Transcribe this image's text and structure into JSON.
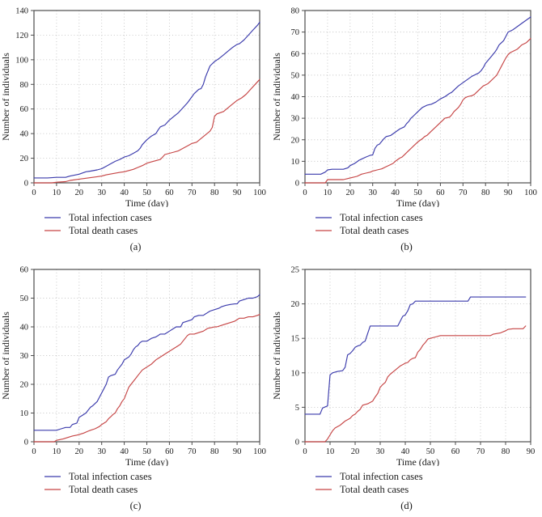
{
  "colors": {
    "background": "#ffffff",
    "frame": "#4d4d4d",
    "grid": "#c4c4c4",
    "text": "#1c1c1c"
  },
  "chart_data": [
    {
      "type": "line",
      "caption": "(a)",
      "xlabel": "Time (day)",
      "ylabel": "Number of individuals",
      "xlim": [
        0,
        100
      ],
      "ylim": [
        0,
        140
      ],
      "xticks": [
        0,
        10,
        20,
        30,
        40,
        50,
        60,
        70,
        80,
        90,
        100
      ],
      "yticks": [
        0,
        20,
        40,
        60,
        80,
        100,
        120,
        140
      ],
      "grid": "dotted",
      "legend_position": "below-left",
      "series": [
        {
          "name": "Total infection cases",
          "color": "#3b3bac",
          "x": [
            0,
            6,
            10,
            14,
            16,
            20,
            23,
            25,
            28,
            30,
            32,
            34,
            36,
            38,
            40,
            42,
            44,
            46,
            47,
            48,
            50,
            52,
            54,
            55,
            56,
            58,
            60,
            62,
            64,
            66,
            68,
            70,
            71,
            73,
            74,
            75,
            76,
            78,
            80,
            82,
            84,
            86,
            88,
            90,
            91,
            93,
            95,
            97,
            99,
            100
          ],
          "y": [
            4,
            4,
            4.5,
            4.5,
            5.5,
            7,
            9,
            9.5,
            10.5,
            11.5,
            13.5,
            15.5,
            17.5,
            19,
            21,
            22,
            24,
            26,
            28,
            31,
            35,
            38,
            40,
            43,
            45.5,
            47,
            51,
            54,
            57,
            61,
            65,
            70,
            72.5,
            76,
            76.5,
            80,
            86,
            95,
            98.5,
            101,
            104,
            107,
            110,
            112.5,
            113,
            116,
            120,
            124,
            128,
            130.5
          ]
        },
        {
          "name": "Total death cases",
          "color": "#c64545",
          "x": [
            0,
            8,
            10,
            14,
            16,
            20,
            24,
            28,
            30,
            32,
            35,
            38,
            40,
            42,
            44,
            46,
            48,
            50,
            52,
            54,
            56,
            57,
            58,
            60,
            62,
            64,
            66,
            68,
            70,
            72,
            74,
            76,
            78,
            79,
            80,
            81,
            84,
            86,
            88,
            90,
            92,
            94,
            96,
            98,
            100
          ],
          "y": [
            0,
            0,
            0.5,
            1,
            2,
            3,
            4,
            5,
            5.5,
            6.5,
            7.5,
            8.5,
            9,
            10,
            11,
            12.5,
            14,
            16,
            17,
            18,
            19,
            21,
            23,
            24,
            25,
            26,
            28,
            30,
            32,
            33,
            36,
            39,
            42,
            45,
            54,
            56,
            58,
            61,
            64,
            67,
            69,
            72,
            76,
            80,
            84
          ]
        }
      ]
    },
    {
      "type": "line",
      "caption": "(b)",
      "xlabel": "Time (day)",
      "ylabel": "Number of individuals",
      "xlim": [
        0,
        100
      ],
      "ylim": [
        0,
        80
      ],
      "xticks": [
        0,
        10,
        20,
        30,
        40,
        50,
        60,
        70,
        80,
        90,
        100
      ],
      "yticks": [
        0,
        10,
        20,
        30,
        40,
        50,
        60,
        70,
        80
      ],
      "grid": "dotted",
      "legend_position": "below-left",
      "series": [
        {
          "name": "Total infection cases",
          "color": "#3b3bac",
          "x": [
            0,
            7,
            9,
            10,
            12,
            17,
            19,
            20,
            22,
            24,
            25,
            27,
            29,
            30,
            31,
            32,
            33,
            35,
            36,
            38,
            40,
            42,
            44,
            45,
            46,
            47,
            48,
            50,
            52,
            54,
            56,
            58,
            60,
            62,
            64,
            65,
            67,
            68,
            70,
            72,
            74,
            75,
            77,
            78,
            79,
            80,
            82,
            84,
            85,
            86,
            87,
            88,
            89,
            90,
            92,
            94,
            96,
            98,
            100
          ],
          "y": [
            4,
            4,
            5,
            6,
            6.3,
            6.3,
            7,
            8,
            9,
            10.5,
            11,
            12,
            12.8,
            13,
            16,
            17.5,
            18,
            20.5,
            21.5,
            22,
            23.5,
            25,
            26,
            27.5,
            28.5,
            30,
            31,
            33,
            35,
            36,
            36.5,
            37.5,
            39,
            40,
            41.5,
            42,
            44,
            45,
            46.5,
            48,
            49.5,
            50,
            51,
            52,
            53.5,
            55.5,
            58,
            60.5,
            62,
            64,
            65,
            66,
            68,
            70,
            71,
            72.5,
            74,
            75.5,
            77
          ]
        },
        {
          "name": "Total death cases",
          "color": "#c64545",
          "x": [
            0,
            9,
            10,
            12,
            17,
            19,
            21,
            23,
            25,
            27,
            29,
            30,
            32,
            34,
            36,
            38,
            39,
            40,
            42,
            43,
            44,
            45,
            46,
            48,
            49,
            50,
            52,
            53,
            54,
            56,
            58,
            60,
            61,
            62,
            64,
            65,
            66,
            68,
            69,
            70,
            71,
            72,
            74,
            75,
            76,
            78,
            79,
            80,
            81,
            82,
            84,
            85,
            86,
            87,
            88,
            89,
            90,
            91,
            92,
            94,
            95,
            96,
            98,
            100
          ],
          "y": [
            0,
            0,
            1.5,
            1.5,
            1.5,
            2,
            2.5,
            3,
            4,
            4.5,
            5,
            5.5,
            6,
            6.5,
            7.5,
            8.5,
            9,
            10,
            11.5,
            12,
            13,
            14,
            15,
            17,
            18,
            19,
            20.5,
            21.5,
            22,
            24,
            26,
            28,
            29,
            30,
            30.5,
            31.5,
            33,
            35,
            36.5,
            38.5,
            39.5,
            40,
            40.5,
            41,
            42,
            44,
            45,
            45.5,
            46,
            47,
            49,
            50,
            52,
            54,
            56,
            58,
            59.5,
            60.5,
            61,
            62,
            63,
            64,
            65,
            67
          ]
        }
      ]
    },
    {
      "type": "line",
      "caption": "(c)",
      "xlabel": "Time (day)",
      "ylabel": "Number of individuals",
      "xlim": [
        0,
        100
      ],
      "ylim": [
        0,
        60
      ],
      "xticks": [
        0,
        10,
        20,
        30,
        40,
        50,
        60,
        70,
        80,
        90,
        100
      ],
      "yticks": [
        0,
        10,
        20,
        30,
        40,
        50,
        60
      ],
      "grid": "dotted",
      "legend_position": "below-left",
      "series": [
        {
          "name": "Total infection cases",
          "color": "#3b3bac",
          "x": [
            0,
            10,
            12,
            14,
            16,
            17,
            19,
            20,
            21,
            23,
            25,
            26,
            28,
            29,
            30,
            31,
            32,
            33,
            34,
            36,
            37,
            38,
            39,
            40,
            41,
            42,
            43,
            44,
            45,
            46,
            47,
            48,
            50,
            52,
            54,
            55,
            56,
            58,
            60,
            62,
            63,
            65,
            66,
            68,
            70,
            71,
            73,
            75,
            76,
            78,
            80,
            82,
            83,
            85,
            87,
            89,
            90,
            91,
            93,
            95,
            97,
            99,
            100
          ],
          "y": [
            4,
            4,
            4.5,
            5,
            5,
            6,
            6.5,
            8.5,
            9,
            10,
            12,
            12.5,
            14,
            15.5,
            17,
            18.5,
            20,
            22.5,
            23,
            23.5,
            25,
            26,
            27,
            28.5,
            29,
            29.5,
            30.5,
            32,
            33,
            33.5,
            34.5,
            35,
            35,
            36,
            36.5,
            37,
            37.5,
            37.5,
            38.5,
            39.5,
            40,
            40,
            41.5,
            42,
            42.5,
            43.5,
            44,
            44,
            44.5,
            45.5,
            46,
            46.5,
            47,
            47.5,
            47.8,
            48,
            48,
            49,
            49.5,
            50,
            50,
            50.5,
            51.2
          ]
        },
        {
          "name": "Total death cases",
          "color": "#c64545",
          "x": [
            0,
            9,
            10,
            13,
            15,
            17,
            19,
            20,
            22,
            24,
            25,
            27,
            29,
            30,
            32,
            33,
            34,
            35,
            36,
            37,
            38,
            39,
            40,
            41,
            42,
            43,
            44,
            45,
            46,
            47,
            48,
            49,
            50,
            52,
            54,
            55,
            57,
            59,
            60,
            62,
            64,
            65,
            66,
            67,
            68,
            69,
            71,
            73,
            75,
            77,
            79,
            80,
            81,
            83,
            85,
            87,
            89,
            90,
            91,
            93,
            95,
            97,
            99,
            100
          ],
          "y": [
            0,
            0,
            0.5,
            1,
            1.5,
            2,
            2.3,
            2.5,
            3,
            3.7,
            4,
            4.5,
            5.3,
            6,
            7,
            8,
            8.7,
            9.5,
            10,
            11.5,
            12.5,
            14,
            15,
            17,
            19,
            20,
            21,
            22,
            23,
            24,
            25,
            25.5,
            26,
            27,
            28.5,
            29,
            30,
            31,
            31.5,
            32.5,
            33.5,
            34,
            35,
            36,
            37,
            37.5,
            37.5,
            38,
            38.5,
            39.5,
            39.8,
            40,
            40,
            40.5,
            41,
            41.5,
            42,
            42.5,
            43,
            43,
            43.5,
            43.5,
            44,
            44.3
          ]
        }
      ]
    },
    {
      "type": "line",
      "caption": "(d)",
      "xlabel": "Time (day)",
      "ylabel": "Number of individuals",
      "xlim": [
        0,
        90
      ],
      "ylim": [
        0,
        25
      ],
      "xticks": [
        0,
        10,
        20,
        30,
        40,
        50,
        60,
        70,
        80,
        90
      ],
      "yticks": [
        0,
        5,
        10,
        15,
        20,
        25
      ],
      "grid": "dotted",
      "legend_position": "below-left",
      "series": [
        {
          "name": "Total infection cases",
          "color": "#3b3bac",
          "x": [
            0,
            6,
            7,
            9,
            10,
            11,
            13,
            15,
            16,
            17,
            18,
            19,
            20,
            21,
            22,
            23,
            24,
            25,
            26,
            37,
            38,
            39,
            40,
            41,
            42,
            43,
            44,
            65,
            66,
            88
          ],
          "y": [
            4,
            4,
            4.9,
            5.2,
            9.7,
            10,
            10.2,
            10.3,
            10.8,
            12.6,
            12.8,
            13.2,
            13.7,
            13.9,
            14,
            14.4,
            14.6,
            15.7,
            16.8,
            16.8,
            17.5,
            18.2,
            18.4,
            19,
            19.9,
            20,
            20.4,
            20.4,
            21,
            21
          ]
        },
        {
          "name": "Total death cases",
          "color": "#c64545",
          "x": [
            0,
            8,
            9,
            10,
            11,
            12,
            13,
            14,
            15,
            16,
            17,
            18,
            19,
            20,
            21,
            22,
            23,
            25,
            27,
            28,
            29,
            30,
            31,
            32,
            33,
            34,
            35,
            36,
            37,
            38,
            39,
            40,
            41,
            42,
            43,
            44,
            45,
            46,
            47,
            48,
            49,
            50,
            52,
            54,
            74,
            75,
            78,
            80,
            81,
            83,
            87,
            88
          ],
          "y": [
            0,
            0,
            0.4,
            1,
            1.6,
            2,
            2.2,
            2.4,
            2.7,
            3,
            3.2,
            3.4,
            3.8,
            4,
            4.4,
            4.7,
            5.3,
            5.5,
            5.9,
            6.5,
            7,
            7.9,
            8.3,
            8.6,
            9.4,
            9.8,
            10.1,
            10.4,
            10.7,
            11,
            11.2,
            11.4,
            11.5,
            11.9,
            12.1,
            12.2,
            13,
            13.4,
            14,
            14.4,
            14.9,
            15,
            15.2,
            15.4,
            15.4,
            15.6,
            15.8,
            16.1,
            16.3,
            16.4,
            16.4,
            16.8
          ]
        }
      ]
    }
  ]
}
